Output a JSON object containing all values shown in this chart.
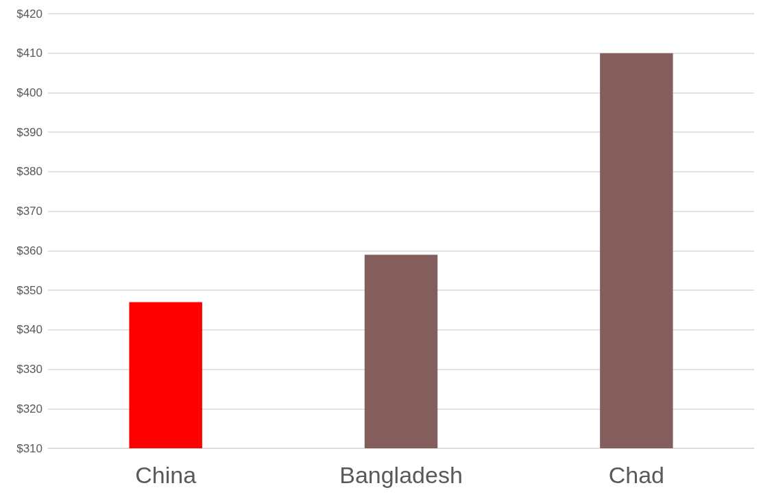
{
  "chart_data": {
    "type": "bar",
    "categories": [
      "China",
      "Bangladesh",
      "Chad"
    ],
    "values": [
      347,
      359,
      410
    ],
    "colors": [
      "#ff0000",
      "#845e5c",
      "#845e5c"
    ],
    "ylim": [
      310,
      420
    ],
    "yticks": [
      {
        "value": 310,
        "label": "$310"
      },
      {
        "value": 320,
        "label": "$320"
      },
      {
        "value": 330,
        "label": "$330"
      },
      {
        "value": 340,
        "label": "$340"
      },
      {
        "value": 350,
        "label": "$350"
      },
      {
        "value": 360,
        "label": "$360"
      },
      {
        "value": 370,
        "label": "$370"
      },
      {
        "value": 380,
        "label": "$380"
      },
      {
        "value": 390,
        "label": "$390"
      },
      {
        "value": 400,
        "label": "$400"
      },
      {
        "value": 410,
        "label": "$410"
      },
      {
        "value": 420,
        "label": "$420"
      }
    ],
    "grid": "y"
  }
}
